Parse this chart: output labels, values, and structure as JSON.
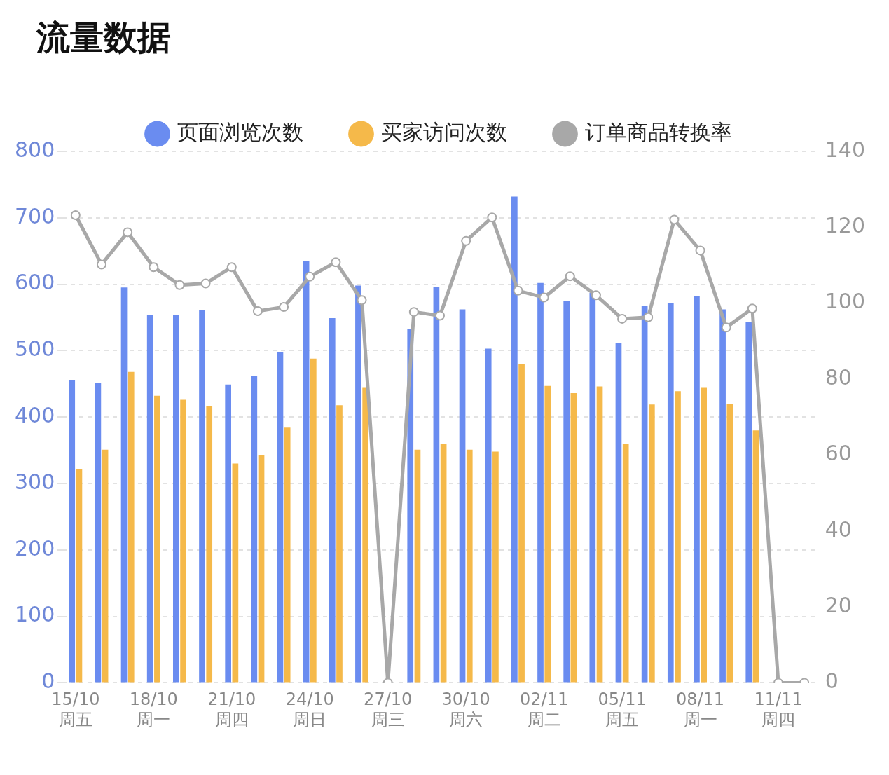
{
  "chart_data": {
    "type": "bar",
    "title": "流量数据",
    "categories": [
      "15/10\n周五",
      null,
      null,
      "18/10\n周一",
      null,
      null,
      "21/10\n周四",
      null,
      null,
      "24/10\n周日",
      null,
      null,
      "27/10\n周三",
      null,
      null,
      "30/10\n周六",
      null,
      null,
      "02/11\n周二",
      null,
      null,
      "05/11\n周五",
      null,
      null,
      "08/11\n周一",
      null,
      null,
      "11/11\n周四",
      null
    ],
    "series": [
      {
        "name": "页面浏览次数",
        "color": "#6a8cf0",
        "values": [
          455,
          451,
          595,
          554,
          554,
          561,
          449,
          462,
          498,
          635,
          549,
          598,
          0,
          532,
          596,
          562,
          503,
          732,
          602,
          575,
          587,
          511,
          567,
          572,
          582,
          562,
          543,
          0,
          0
        ]
      },
      {
        "name": "买家访问次数",
        "color": "#f5b94a",
        "values": [
          321,
          351,
          468,
          432,
          426,
          416,
          330,
          343,
          384,
          488,
          418,
          444,
          0,
          351,
          360,
          351,
          348,
          480,
          447,
          436,
          446,
          359,
          419,
          439,
          444,
          420,
          380,
          0,
          0
        ]
      },
      {
        "name": "订单商品转换率",
        "type": "line",
        "axis": "y2",
        "color": "#a8a8a8",
        "values": [
          123.2,
          110.2,
          118.7,
          109.5,
          104.8,
          105.2,
          109.5,
          97.9,
          99.0,
          107.0,
          110.8,
          100.8,
          0,
          97.7,
          96.7,
          116.4,
          122.6,
          103.3,
          101.5,
          107.1,
          102.1,
          95.9,
          96.3,
          122.0,
          113.9,
          93.6,
          98.6,
          0,
          0
        ]
      }
    ],
    "ylim": [
      0,
      800
    ],
    "yticks": [
      0,
      100,
      200,
      300,
      400,
      500,
      600,
      700,
      800
    ],
    "y2lim": [
      0,
      140
    ],
    "y2ticks": [
      0,
      20,
      40,
      60,
      80,
      100,
      120,
      140
    ],
    "grid": "y",
    "legend": "top",
    "marker": "circle",
    "line_style": "solid"
  }
}
